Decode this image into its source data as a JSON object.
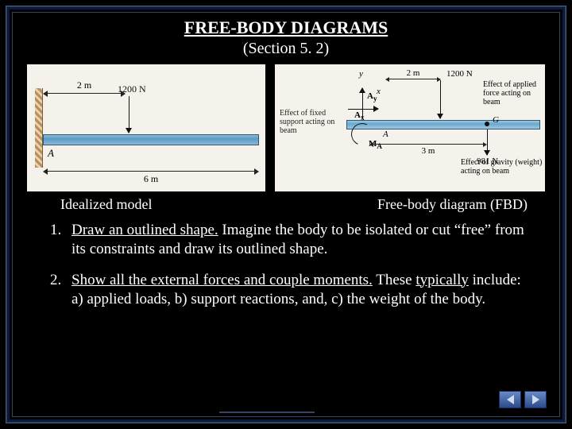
{
  "title": "FREE-BODY DIAGRAMS",
  "subtitle": "(Section 5. 2)",
  "leftFig": {
    "caption": "Idealized model",
    "dim2m": "2 m",
    "force": "1200 N",
    "dim6m": "6 m",
    "pointA": "A"
  },
  "rightFig": {
    "caption": "Free-body diagram (FBD)",
    "axisY": "y",
    "axisX": "x",
    "Ay": "A_y",
    "Ax": "A_x",
    "MA": "M_A",
    "effectFixed": "Effect of fixed support acting on beam",
    "dim2m": "2 m",
    "force1200": "1200 N",
    "effectApplied": "Effect of applied force acting on beam",
    "dim3m": "3 m",
    "G": "G",
    "A": "A",
    "force981": "981 N",
    "effectGravity": "Effect of gravity (weight) acting on beam"
  },
  "steps": {
    "s1a": "Draw an outlined shape.",
    "s1b": " Imagine the body to be isolated or cut “free” from its constraints and draw its outlined shape.",
    "s2a": "Show all the external forces and couple moments.",
    "s2b": " These ",
    "s2c": "typically",
    "s2d": " include: a) applied loads, b) support reactions, and, c) the weight of the body."
  }
}
